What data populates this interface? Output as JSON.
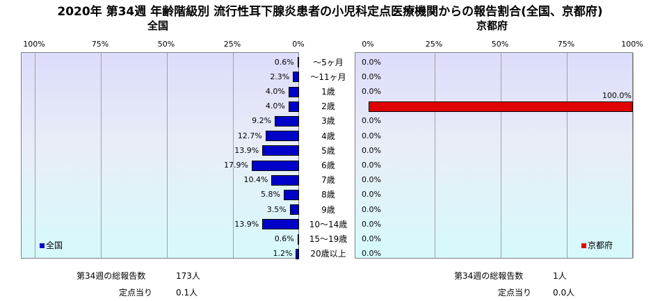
{
  "title": "2020年 第34週 年齢階級別 流行性耳下腺炎患者の小児科定点医療機関からの報告割合(全国、京都府)",
  "left_subtitle": "全国",
  "right_subtitle": "京都府",
  "left_ticks": [
    "100%",
    "75%",
    "50%",
    "25%",
    "0%"
  ],
  "right_ticks": [
    "0%",
    "25%",
    "50%",
    "75%",
    "100%"
  ],
  "legend": {
    "left": "全国",
    "right": "京都府"
  },
  "colors": {
    "left_series": "#0000c8",
    "right_series": "#e00000"
  },
  "footer": {
    "left_total_label": "第34週の総報告数",
    "left_total_value": "173人",
    "left_per_label": "定点当り",
    "left_per_value": "0.1人",
    "right_total_label": "第34週の総報告数",
    "right_total_value": "1人",
    "right_per_label": "定点当り",
    "right_per_value": "0.0人"
  },
  "chart_data": {
    "type": "bar",
    "orientation": "horizontal",
    "categories": [
      "～5ヶ月",
      "～11ヶ月",
      "1歳",
      "2歳",
      "3歳",
      "4歳",
      "5歳",
      "6歳",
      "7歳",
      "8歳",
      "9歳",
      "10～14歳",
      "15～19歳",
      "20歳以上"
    ],
    "series": [
      {
        "name": "全国",
        "values": [
          0.6,
          2.3,
          4.0,
          4.0,
          9.2,
          12.7,
          13.9,
          17.9,
          10.4,
          5.8,
          3.5,
          13.9,
          0.6,
          1.2
        ],
        "labels": [
          "0.6%",
          "2.3%",
          "4.0%",
          "4.0%",
          "9.2%",
          "12.7%",
          "13.9%",
          "17.9%",
          "10.4%",
          "5.8%",
          "3.5%",
          "13.9%",
          "0.6%",
          "1.2%"
        ]
      },
      {
        "name": "京都府",
        "values": [
          0,
          0,
          0,
          100,
          0,
          0,
          0,
          0,
          0,
          0,
          0,
          0,
          0,
          0
        ],
        "labels": [
          "0.0%",
          "0.0%",
          "0.0%",
          "100.0%",
          "0.0%",
          "0.0%",
          "0.0%",
          "0.0%",
          "0.0%",
          "0.0%",
          "0.0%",
          "0.0%",
          "0.0%",
          "0.0%"
        ]
      }
    ],
    "xlim": [
      0,
      100
    ],
    "grid": true
  }
}
